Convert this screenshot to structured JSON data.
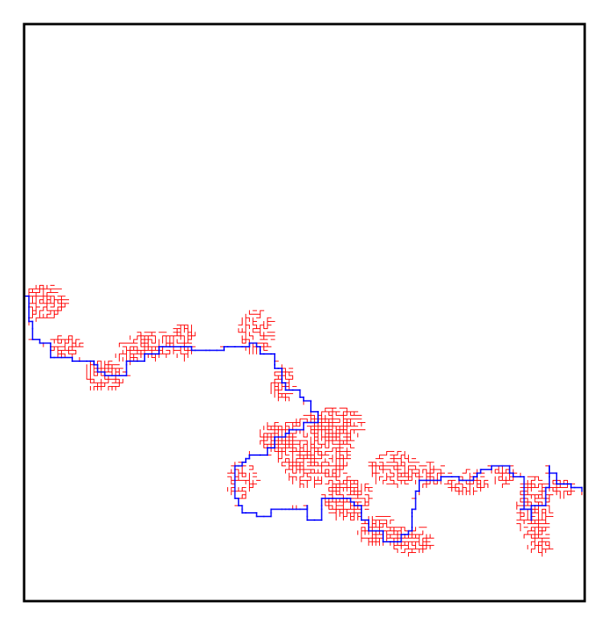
{
  "figure": {
    "colors": {
      "background": "#ffffff",
      "frame": "#000000",
      "cluster": "#ff0000",
      "path": "#0000ff"
    }
  }
}
